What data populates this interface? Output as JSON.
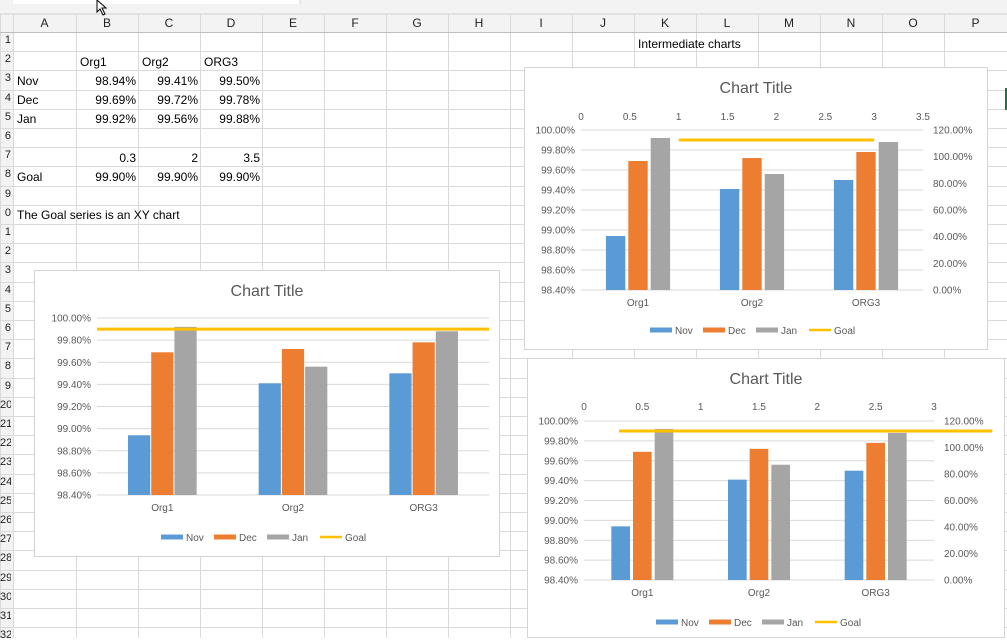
{
  "columns": [
    "A",
    "B",
    "C",
    "D",
    "E",
    "F",
    "G",
    "H",
    "I",
    "J",
    "K",
    "L",
    "M",
    "N",
    "O",
    "P"
  ],
  "rows": [
    "1",
    "2",
    "3",
    "4",
    "5",
    "6",
    "7",
    "8",
    "9",
    "0",
    "1",
    "2",
    "3",
    "4",
    "5",
    "6",
    "7",
    "8",
    "9",
    "20",
    "21",
    "22",
    "23",
    "24",
    "25",
    "26",
    "27",
    "28",
    "29",
    "30",
    "31",
    "32"
  ],
  "cells": {
    "b2": "Org1",
    "c2": "Org2",
    "d2": "ORG3",
    "a3": "Nov",
    "b3": "98.94%",
    "c3": "99.41%",
    "d3": "99.50%",
    "a4": "Dec",
    "b4": "99.69%",
    "c4": "99.72%",
    "d4": "99.78%",
    "a5": "Jan",
    "b5": "99.92%",
    "c5": "99.56%",
    "d5": "99.88%",
    "b7": "0.3",
    "c7": "2",
    "d7": "3.5",
    "a8": "Goal",
    "b8": "99.90%",
    "c8": "99.90%",
    "d8": "99.90%",
    "a10": "The Goal series is an XY chart",
    "k1": "Intermediate charts"
  },
  "colors": {
    "nov": "#5b9bd5",
    "dec": "#ed7d31",
    "jan": "#a5a5a5",
    "goal": "#ffc000"
  },
  "chart_data": [
    {
      "type": "bar",
      "title": "Chart Title",
      "categories": [
        "Org1",
        "Org2",
        "ORG3"
      ],
      "series": [
        {
          "name": "Nov",
          "values": [
            98.94,
            99.41,
            99.5
          ]
        },
        {
          "name": "Dec",
          "values": [
            99.69,
            99.72,
            99.78
          ]
        },
        {
          "name": "Jan",
          "values": [
            99.92,
            99.56,
            99.88
          ]
        },
        {
          "name": "Goal",
          "type": "line",
          "values": [
            99.9,
            99.9,
            99.9
          ]
        }
      ],
      "y_ticks": [
        "98.40%",
        "98.60%",
        "98.80%",
        "99.00%",
        "99.20%",
        "99.40%",
        "99.60%",
        "99.80%",
        "100.00%"
      ],
      "ylim": [
        98.4,
        100.0
      ],
      "legend": "bottom"
    },
    {
      "type": "bar",
      "title": "Chart Title",
      "categories": [
        "Org1",
        "Org2",
        "ORG3"
      ],
      "series": [
        {
          "name": "Nov",
          "values": [
            98.94,
            99.41,
            99.5
          ]
        },
        {
          "name": "Dec",
          "values": [
            99.69,
            99.72,
            99.78
          ]
        },
        {
          "name": "Jan",
          "values": [
            99.92,
            99.56,
            99.88
          ]
        },
        {
          "name": "Goal",
          "type": "scatter-line",
          "x": [
            1,
            3
          ],
          "y": [
            99.9,
            99.9
          ]
        }
      ],
      "y_ticks": [
        "98.40%",
        "98.60%",
        "98.80%",
        "99.00%",
        "99.20%",
        "99.40%",
        "99.60%",
        "99.80%",
        "100.00%"
      ],
      "ylim": [
        98.4,
        100.0
      ],
      "secondary_x_ticks": [
        "0",
        "0.5",
        "1",
        "1.5",
        "2",
        "2.5",
        "3",
        "3.5"
      ],
      "secondary_xlim": [
        0,
        3.5
      ],
      "secondary_y_ticks": [
        "0.00%",
        "20.00%",
        "40.00%",
        "60.00%",
        "80.00%",
        "100.00%",
        "120.00%"
      ],
      "secondary_ylim": [
        0,
        120
      ],
      "legend": "bottom"
    },
    {
      "type": "bar",
      "title": "Chart Title",
      "categories": [
        "Org1",
        "Org2",
        "ORG3"
      ],
      "series": [
        {
          "name": "Nov",
          "values": [
            98.94,
            99.41,
            99.5
          ]
        },
        {
          "name": "Dec",
          "values": [
            99.69,
            99.72,
            99.78
          ]
        },
        {
          "name": "Jan",
          "values": [
            99.92,
            99.56,
            99.88
          ]
        },
        {
          "name": "Goal",
          "type": "scatter-line",
          "x": [
            0.3,
            3.5
          ],
          "y": [
            99.9,
            99.9
          ]
        }
      ],
      "y_ticks": [
        "98.40%",
        "98.60%",
        "98.80%",
        "99.00%",
        "99.20%",
        "99.40%",
        "99.60%",
        "99.80%",
        "100.00%"
      ],
      "ylim": [
        98.4,
        100.0
      ],
      "secondary_x_ticks": [
        "0",
        "0.5",
        "1",
        "1.5",
        "2",
        "2.5",
        "3"
      ],
      "secondary_xlim": [
        0,
        3
      ],
      "secondary_y_ticks": [
        "0.00%",
        "20.00%",
        "40.00%",
        "60.00%",
        "80.00%",
        "100.00%",
        "120.00%"
      ],
      "secondary_ylim": [
        0,
        120
      ],
      "legend": "bottom"
    }
  ]
}
